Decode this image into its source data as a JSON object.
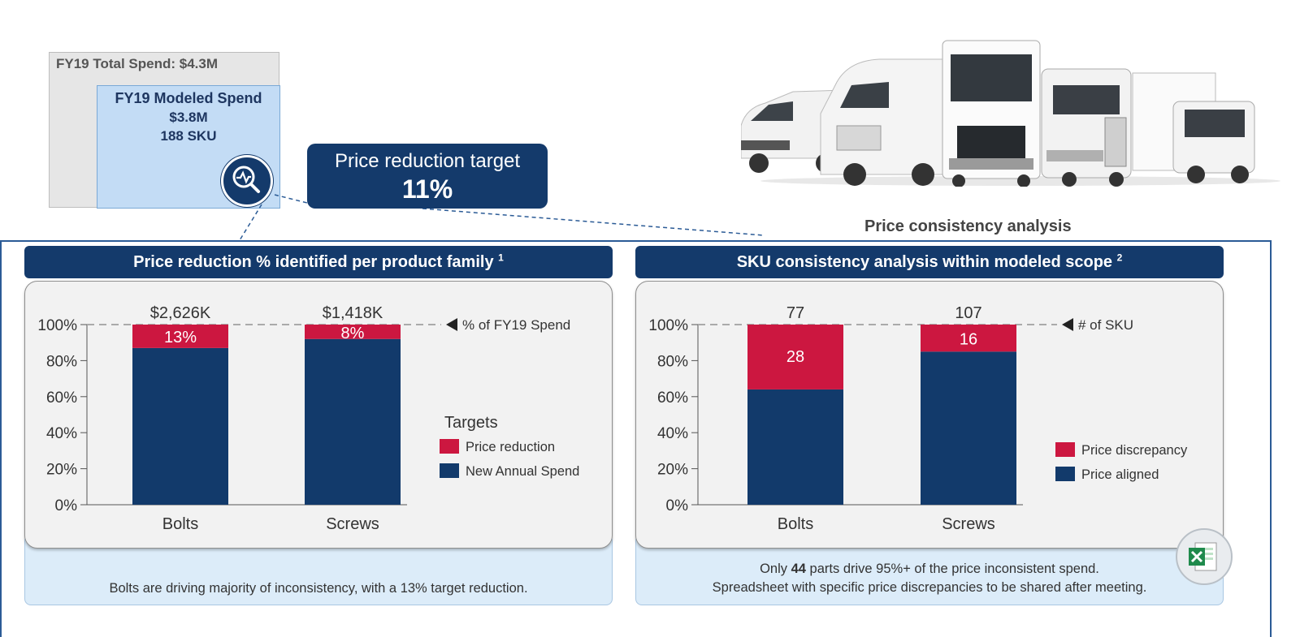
{
  "spend": {
    "total_label": "FY19 Total Spend: $4.3M",
    "modeled_label": "FY19 Modeled Spend",
    "modeled_value": "$3.8M",
    "modeled_sku": "188 SKU",
    "icon": "magnifier-chart-icon"
  },
  "target": {
    "label": "Price reduction target",
    "value": "11%"
  },
  "trucks_image": "trucks-image",
  "consistency_title": "Price consistency analysis",
  "left_panel": {
    "title": "Price reduction % identified per product family",
    "footnote": "1",
    "note": "Bolts are driving majority of inconsistency, with a 13% target reduction."
  },
  "right_panel": {
    "title": "SKU consistency analysis within modeled scope",
    "footnote": "2",
    "note_line1_pre": "Only ",
    "note_line1_bold": "44",
    "note_line1_post": " parts drive 95%+ of the price inconsistent spend.",
    "note_line2": "Spreadsheet with specific price discrepancies to be shared after meeting.",
    "excel_icon": "excel-icon"
  },
  "colors": {
    "navy": "#123a6b",
    "red": "#cc1740",
    "panel_blue": "#dcecf9"
  },
  "chart_data": [
    {
      "type": "bar",
      "stacked": true,
      "categories": [
        "Bolts",
        "Screws"
      ],
      "top_labels": [
        "$2,626K",
        "$1,418K"
      ],
      "series": [
        {
          "name": "New Annual Spend",
          "values": [
            87,
            92
          ],
          "color": "#123a6b"
        },
        {
          "name": "Price reduction",
          "values": [
            13,
            8
          ],
          "color": "#cc1740",
          "labels": [
            "13%",
            "8%"
          ]
        }
      ],
      "yticks": [
        "100%",
        "80%",
        "60%",
        "40%",
        "20%",
        "0%"
      ],
      "ylim": [
        0,
        100
      ],
      "reference_label": "% of FY19 Spend",
      "legend_title": "Targets",
      "legend": [
        "Price reduction",
        "New Annual Spend"
      ],
      "legend_position": "right"
    },
    {
      "type": "bar",
      "stacked": true,
      "categories": [
        "Bolts",
        "Screws"
      ],
      "top_labels": [
        "77",
        "107"
      ],
      "series": [
        {
          "name": "Price aligned",
          "values": [
            64,
            85
          ],
          "color": "#123a6b"
        },
        {
          "name": "Price discrepancy",
          "values": [
            36,
            15
          ],
          "color": "#cc1740",
          "labels": [
            "28",
            "16"
          ]
        }
      ],
      "yticks": [
        "100%",
        "80%",
        "60%",
        "40%",
        "20%",
        "0%"
      ],
      "ylim": [
        0,
        100
      ],
      "reference_label": "# of SKU",
      "legend_title": "",
      "legend": [
        "Price discrepancy",
        "Price aligned"
      ],
      "legend_position": "right"
    }
  ]
}
